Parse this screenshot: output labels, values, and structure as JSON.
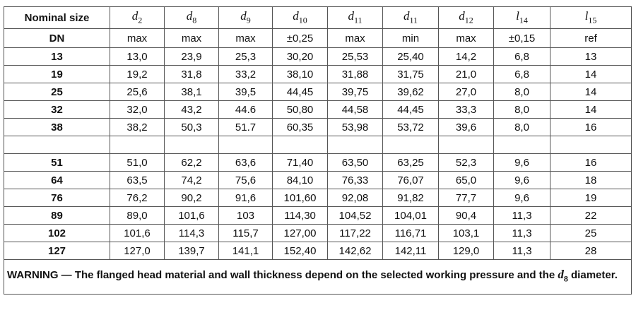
{
  "table": {
    "header": {
      "first": [
        "Nominal size",
        "DN"
      ],
      "columns": [
        {
          "symbol": "d",
          "sub": "2",
          "note": "max"
        },
        {
          "symbol": "d",
          "sub": "8",
          "note": "max"
        },
        {
          "symbol": "d",
          "sub": "9",
          "note": "max"
        },
        {
          "symbol": "d",
          "sub": "10",
          "note": "±0,25"
        },
        {
          "symbol": "d",
          "sub": "11",
          "note": "max"
        },
        {
          "symbol": "d",
          "sub": "11",
          "note": "min"
        },
        {
          "symbol": "d",
          "sub": "12",
          "note": "max"
        },
        {
          "symbol": "l",
          "sub": "14",
          "note": "±0,15"
        },
        {
          "symbol": "l",
          "sub": "15",
          "note": "ref"
        }
      ]
    },
    "groups": [
      [
        [
          "13",
          "13,0",
          "23,9",
          "25,3",
          "30,20",
          "25,53",
          "25,40",
          "14,2",
          "6,8",
          "13"
        ],
        [
          "19",
          "19,2",
          "31,8",
          "33,2",
          "38,10",
          "31,88",
          "31,75",
          "21,0",
          "6,8",
          "14"
        ],
        [
          "25",
          "25,6",
          "38,1",
          "39,5",
          "44,45",
          "39,75",
          "39,62",
          "27,0",
          "8,0",
          "14"
        ],
        [
          "32",
          "32,0",
          "43,2",
          "44.6",
          "50,80",
          "44,58",
          "44,45",
          "33,3",
          "8,0",
          "14"
        ],
        [
          "38",
          "38,2",
          "50,3",
          "51.7",
          "60,35",
          "53,98",
          "53,72",
          "39,6",
          "8,0",
          "16"
        ]
      ],
      [
        [
          "51",
          "51,0",
          "62,2",
          "63,6",
          "71,40",
          "63,50",
          "63,25",
          "52,3",
          "9,6",
          "16"
        ],
        [
          "64",
          "63,5",
          "74,2",
          "75,6",
          "84,10",
          "76,33",
          "76,07",
          "65,0",
          "9,6",
          "18"
        ],
        [
          "76",
          "76,2",
          "90,2",
          "91,6",
          "101,60",
          "92,08",
          "91,82",
          "77,7",
          "9,6",
          "19"
        ],
        [
          "89",
          "89,0",
          "101,6",
          "103",
          "114,30",
          "104,52",
          "104,01",
          "90,4",
          "11,3",
          "22"
        ],
        [
          "102",
          "101,6",
          "114,3",
          "115,7",
          "127,00",
          "117,22",
          "116,71",
          "103,1",
          "11,3",
          "25"
        ],
        [
          "127",
          "127,0",
          "139,7",
          "141,1",
          "152,40",
          "142,62",
          "142,11",
          "129,0",
          "11,3",
          "28"
        ]
      ]
    ],
    "warning": {
      "lead": "WARNING — The flanged head material and wall thickness depend on the selected working pressure and the",
      "symbol": "d",
      "sub": "8",
      "tail": "diameter."
    }
  }
}
